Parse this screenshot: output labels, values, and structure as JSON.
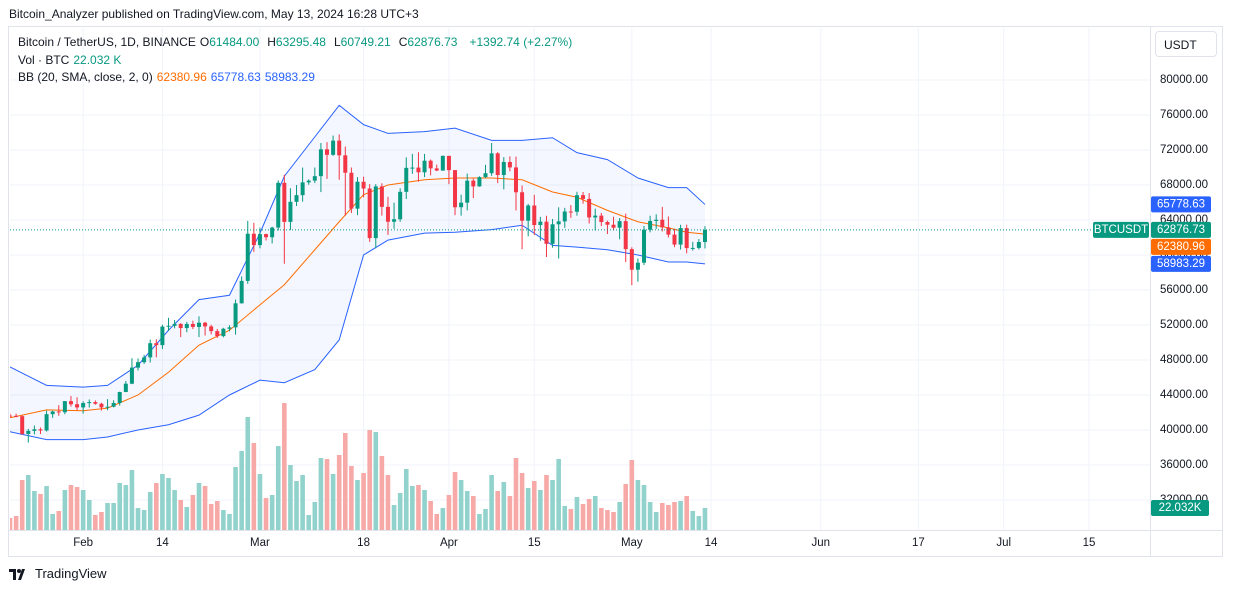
{
  "header": {
    "publisher": "Bitcoin_Analyzer published on TradingView.com, May 13, 2024 16:28 UTC+3"
  },
  "footer": {
    "logo": "TradingView"
  },
  "currency_button": "USDT",
  "chart_data": {
    "type": "candlestick",
    "legend": {
      "symbol": "Bitcoin / TetherUS, 1D, BINANCE",
      "ohlc": [
        {
          "label": "O",
          "value": "61484.00"
        },
        {
          "label": "H",
          "value": "63295.48"
        },
        {
          "label": "L",
          "value": "60749.21"
        },
        {
          "label": "C",
          "value": "62876.73"
        }
      ],
      "change": "+1392.74 (+2.27%)",
      "volume_label": "Vol · BTC",
      "volume_value": "22.032 K",
      "bb_label": "BB (20, SMA, close, 2, 0)",
      "bb_values": [
        "62380.96",
        "65778.63",
        "58983.29"
      ]
    },
    "up_color": "#089981",
    "down_color": "#f23645",
    "volume_up_color": "#92d2cc",
    "volume_down_color": "#f7a9a7",
    "xlim": [
      "01-20",
      "07-25"
    ],
    "xticks": [
      {
        "value": "02-01",
        "label": "Feb"
      },
      {
        "value": "02-14",
        "label": "14"
      },
      {
        "value": "03-01",
        "label": "Mar"
      },
      {
        "value": "03-18",
        "label": "18"
      },
      {
        "value": "04-01",
        "label": "Apr"
      },
      {
        "value": "04-15",
        "label": "15"
      },
      {
        "value": "05-01",
        "label": "May"
      },
      {
        "value": "05-14",
        "label": "14"
      },
      {
        "value": "06-01",
        "label": "Jun"
      },
      {
        "value": "06-17",
        "label": "17"
      },
      {
        "value": "07-01",
        "label": "Jul"
      },
      {
        "value": "07-15",
        "label": "15"
      }
    ],
    "ylim": [
      28571,
      85943
    ],
    "yticks": [
      {
        "value": 80000,
        "label": "80000.00"
      },
      {
        "value": 76000,
        "label": "76000.00"
      },
      {
        "value": 72000,
        "label": "72000.00"
      },
      {
        "value": 68000,
        "label": "68000.00"
      },
      {
        "value": 64000,
        "label": "64000.00"
      },
      {
        "value": 60000,
        "label": "60000.00"
      },
      {
        "value": 56000,
        "label": "56000.00"
      },
      {
        "value": 52000,
        "label": "52000.00"
      },
      {
        "value": 48000,
        "label": "48000.00"
      },
      {
        "value": 44000,
        "label": "44000.00"
      },
      {
        "value": 40000,
        "label": "40000.00"
      },
      {
        "value": 36000,
        "label": "36000.00"
      },
      {
        "value": 32000,
        "label": "32000.00"
      }
    ],
    "grid": true,
    "volume_ylim": [
      0,
      502
    ],
    "dates": [
      "01-20",
      "01-21",
      "01-22",
      "01-23",
      "01-24",
      "01-25",
      "01-26",
      "01-27",
      "01-28",
      "01-29",
      "01-30",
      "01-31",
      "02-01",
      "02-02",
      "02-03",
      "02-04",
      "02-05",
      "02-06",
      "02-07",
      "02-08",
      "02-09",
      "02-10",
      "02-11",
      "02-12",
      "02-13",
      "02-14",
      "02-15",
      "02-16",
      "02-17",
      "02-18",
      "02-19",
      "02-20",
      "02-21",
      "02-22",
      "02-23",
      "02-24",
      "02-25",
      "02-26",
      "02-27",
      "02-28",
      "02-29",
      "03-01",
      "03-02",
      "03-03",
      "03-04",
      "03-05",
      "03-06",
      "03-07",
      "03-08",
      "03-09",
      "03-10",
      "03-11",
      "03-12",
      "03-13",
      "03-14",
      "03-15",
      "03-16",
      "03-17",
      "03-18",
      "03-19",
      "03-20",
      "03-21",
      "03-22",
      "03-23",
      "03-24",
      "03-25",
      "03-26",
      "03-27",
      "03-28",
      "03-29",
      "03-30",
      "03-31",
      "04-01",
      "04-02",
      "04-03",
      "04-04",
      "04-05",
      "04-06",
      "04-07",
      "04-08",
      "04-09",
      "04-10",
      "04-11",
      "04-12",
      "04-13",
      "04-14",
      "04-15",
      "04-16",
      "04-17",
      "04-18",
      "04-19",
      "04-20",
      "04-21",
      "04-22",
      "04-23",
      "04-24",
      "04-25",
      "04-26",
      "04-27",
      "04-28",
      "04-29",
      "04-30",
      "05-01",
      "05-02",
      "05-03",
      "05-04",
      "05-05",
      "05-06",
      "05-07",
      "05-08",
      "05-09",
      "05-10",
      "05-11",
      "05-12",
      "05-13"
    ],
    "open": [
      41650,
      41620,
      41580,
      39550,
      39900,
      40080,
      39940,
      41810,
      42120,
      42030,
      43300,
      42940,
      42580,
      43080,
      43190,
      43000,
      42580,
      42660,
      43090,
      44340,
      45290,
      47130,
      47750,
      48300,
      49920,
      49700,
      51820,
      51910,
      52130,
      51650,
      52120,
      51780,
      52260,
      51840,
      51300,
      50730,
      51570,
      51730,
      54480,
      57040,
      62430,
      61130,
      62390,
      62030,
      63130,
      68250,
      63780,
      66080,
      66840,
      68300,
      68500,
      69010,
      72080,
      71450,
      73070,
      71390,
      69400,
      65300,
      68370,
      67600,
      61930,
      67840,
      65500,
      63800,
      64090,
      67220,
      69960,
      69990,
      69450,
      70780,
      69900,
      69650,
      71330,
      69700,
      65460,
      65980,
      68500,
      67840,
      68900,
      69350,
      71620,
      69140,
      70630,
      70010,
      67170,
      63920,
      65660,
      63420,
      63810,
      61280,
      63510,
      63840,
      64970,
      64940,
      66840,
      66410,
      64290,
      64500,
      63770,
      63460,
      63120,
      63870,
      60670,
      58320,
      59120,
      62890,
      63890,
      64030,
      63160,
      62330,
      61190,
      63080,
      60790,
      60810,
      61484
    ],
    "high": [
      41870,
      41860,
      41680,
      40130,
      40510,
      40290,
      42200,
      42200,
      42840,
      43310,
      43880,
      43740,
      43280,
      43490,
      43380,
      43120,
      43530,
      43400,
      44380,
      45600,
      48200,
      48170,
      48590,
      50330,
      50370,
      52040,
      52820,
      52580,
      52200,
      52360,
      52490,
      52990,
      52360,
      52030,
      51550,
      51680,
      51970,
      54900,
      57550,
      63900,
      63680,
      63130,
      62430,
      63230,
      68530,
      69170,
      67630,
      67990,
      69990,
      68640,
      70000,
      72800,
      72900,
      73650,
      73780,
      72400,
      70000,
      68900,
      68950,
      68100,
      68100,
      68200,
      66650,
      65980,
      67620,
      71150,
      71560,
      71750,
      71550,
      70910,
      70330,
      71370,
      71340,
      69710,
      66900,
      69300,
      68720,
      69000,
      70300,
      72800,
      71760,
      71180,
      71280,
      71250,
      67940,
      65840,
      66870,
      64360,
      64480,
      64120,
      65450,
      65390,
      65710,
      67230,
      67200,
      67070,
      65300,
      64800,
      63920,
      64370,
      64230,
      64730,
      60880,
      59600,
      63320,
      64490,
      64650,
      65500,
      64400,
      63000,
      63460,
      63470,
      61500,
      61820,
      63295.48
    ],
    "low": [
      41430,
      41450,
      39450,
      38560,
      39500,
      39540,
      39830,
      41390,
      41620,
      41800,
      42680,
      42260,
      41880,
      42560,
      42880,
      42220,
      42260,
      42580,
      42790,
      44330,
      45240,
      46800,
      47550,
      47710,
      48300,
      49260,
      51310,
      51620,
      50620,
      51170,
      51530,
      50620,
      50800,
      50930,
      50520,
      50590,
      51270,
      50900,
      54440,
      56710,
      60360,
      60760,
      61660,
      61320,
      62790,
      59000,
      62850,
      65600,
      66100,
      68030,
      68220,
      67190,
      68700,
      71330,
      68600,
      64500,
      64800,
      64550,
      66600,
      61500,
      60770,
      64500,
      62300,
      63000,
      63800,
      66400,
      69280,
      68380,
      68900,
      69100,
      69580,
      69630,
      68100,
      64550,
      64500,
      65100,
      66500,
      67800,
      68800,
      69050,
      68210,
      67500,
      69560,
      65090,
      60660,
      62130,
      62300,
      61620,
      59770,
      60830,
      59600,
      63100,
      64240,
      64500,
      65860,
      63600,
      62790,
      63300,
      62400,
      62800,
      61800,
      59200,
      56550,
      56950,
      58850,
      62590,
      62990,
      62700,
      62000,
      60890,
      60620,
      60190,
      60500,
      60630,
      60749.21
    ],
    "close": [
      41620,
      41580,
      39550,
      39900,
      40080,
      39940,
      41810,
      42120,
      42030,
      43300,
      42940,
      42580,
      43080,
      43190,
      43000,
      42580,
      42660,
      43090,
      44340,
      45290,
      47130,
      47750,
      48300,
      49920,
      49700,
      51820,
      51910,
      52130,
      51650,
      52120,
      51780,
      52260,
      51840,
      51300,
      50730,
      51570,
      51730,
      54480,
      57040,
      62430,
      61130,
      62390,
      62030,
      63130,
      68250,
      63780,
      66080,
      66840,
      68300,
      68500,
      69010,
      72080,
      71450,
      73070,
      71390,
      69400,
      65300,
      68370,
      67600,
      61930,
      67840,
      65500,
      63800,
      64090,
      67220,
      69960,
      69990,
      69450,
      70780,
      69900,
      69650,
      71330,
      69700,
      65460,
      65980,
      68500,
      67840,
      68900,
      69350,
      71620,
      69140,
      70630,
      70010,
      67170,
      63920,
      65660,
      63420,
      63810,
      61280,
      63510,
      63840,
      64970,
      64940,
      66840,
      66410,
      64290,
      64500,
      63770,
      63460,
      63120,
      63870,
      60670,
      58320,
      59120,
      62890,
      63890,
      64030,
      63160,
      62330,
      61190,
      63080,
      60790,
      60810,
      61484,
      62876.73
    ],
    "volume": [
      12,
      14,
      50,
      55,
      39,
      36,
      44,
      16,
      19,
      40,
      45,
      43,
      40,
      30,
      15,
      18,
      27,
      27,
      47,
      45,
      60,
      22,
      20,
      38,
      47,
      56,
      52,
      40,
      30,
      23,
      35,
      47,
      44,
      26,
      29,
      20,
      16,
      63,
      79,
      113,
      87,
      56,
      32,
      35,
      84,
      127,
      65,
      49,
      55,
      15,
      28,
      72,
      71,
      56,
      75,
      97,
      64,
      50,
      57,
      100,
      98,
      74,
      55,
      25,
      37,
      61,
      44,
      45,
      40,
      29,
      16,
      22,
      35,
      58,
      50,
      39,
      34,
      16,
      21,
      55,
      39,
      48,
      34,
      72,
      57,
      42,
      49,
      40,
      55,
      50,
      71,
      24,
      21,
      33,
      26,
      31,
      34,
      22,
      20,
      18,
      28,
      46,
      70,
      50,
      45,
      28,
      18,
      27,
      25,
      28,
      29,
      34,
      19,
      14,
      22.032
    ],
    "bollinger": {
      "dates": [
        "01-20",
        "01-26",
        "02-01",
        "02-05",
        "02-10",
        "02-15",
        "02-20",
        "02-25",
        "03-01",
        "03-05",
        "03-10",
        "03-14",
        "03-18",
        "03-22",
        "03-28",
        "04-02",
        "04-08",
        "04-13",
        "04-18",
        "04-22",
        "04-27",
        "05-02",
        "05-07",
        "05-10",
        "05-13"
      ],
      "upper": [
        47200,
        45100,
        44900,
        45100,
        47400,
        51400,
        54900,
        55400,
        62500,
        69000,
        73500,
        77100,
        74900,
        73900,
        74100,
        74500,
        73100,
        73100,
        73400,
        71700,
        70900,
        68800,
        67700,
        67700,
        65778.63
      ],
      "basis": [
        41400,
        42300,
        42200,
        42500,
        44000,
        46600,
        49700,
        51400,
        54300,
        56600,
        60600,
        63800,
        66900,
        68000,
        68600,
        68800,
        68800,
        68600,
        67200,
        66600,
        65100,
        63800,
        63100,
        62600,
        62380.96
      ],
      "lower": [
        39800,
        38900,
        38900,
        39200,
        40000,
        40600,
        41700,
        44000,
        45700,
        45400,
        46900,
        50300,
        60000,
        61700,
        62500,
        62600,
        62900,
        63400,
        61100,
        60900,
        60600,
        60000,
        59200,
        59200,
        58983.29
      ],
      "band_color": "#2962ff",
      "basis_color": "#ff6d00"
    },
    "price_labels": [
      {
        "name": "BTCUSDT",
        "value": 62876.73,
        "color": "#089981"
      },
      {
        "value": 65778.63,
        "color": "#2962ff"
      },
      {
        "value": 62380.96,
        "color": "#ff6d00"
      },
      {
        "value": 58983.29,
        "color": "#2962ff"
      }
    ],
    "volume_price_label": {
      "value": 22.032,
      "label": "22.032K",
      "color": "#089981"
    }
  }
}
